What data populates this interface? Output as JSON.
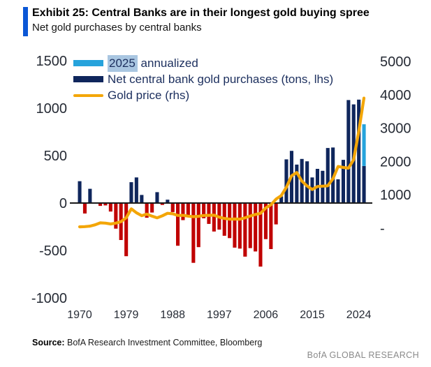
{
  "header": {
    "exhibit_title": "Exhibit 25: Central Banks are in their longest gold buying spree",
    "subtitle": "Net gold purchases by central banks"
  },
  "legend": {
    "item1_highlight": "2025",
    "item1_rest": " annualized",
    "item2": "Net central bank gold purchases (tons, lhs)",
    "item3": "Gold price (rhs)"
  },
  "footer": {
    "source_label": "Source:",
    "source_text": " BofA Research Investment Committee, Bloomberg",
    "brand": "BofA GLOBAL RESEARCH"
  },
  "colors": {
    "accent_blue": "#0b57d6",
    "navy_bar": "#0f265c",
    "red_bar": "#c00000",
    "gold_line": "#f3a608",
    "light_blue_bar": "#26a3dc",
    "legend_highlight": "#a9c6e1",
    "axis_text": "#262b35",
    "zero_line": "#1a1a1a"
  },
  "chart_data": {
    "type": "bar",
    "title": "Exhibit 25: Central Banks are in their longest gold buying spree",
    "subtitle": "Net gold purchases by central banks",
    "x": [
      1970,
      1971,
      1972,
      1973,
      1974,
      1975,
      1976,
      1977,
      1978,
      1979,
      1980,
      1981,
      1982,
      1983,
      1984,
      1985,
      1986,
      1987,
      1988,
      1989,
      1990,
      1991,
      1992,
      1993,
      1994,
      1995,
      1996,
      1997,
      1998,
      1999,
      2000,
      2001,
      2002,
      2003,
      2004,
      2005,
      2006,
      2007,
      2008,
      2009,
      2010,
      2011,
      2012,
      2013,
      2014,
      2015,
      2016,
      2017,
      2018,
      2019,
      2020,
      2021,
      2022,
      2023,
      2024,
      2025
    ],
    "series": [
      {
        "name": "Net central bank gold purchases (tons, lhs)",
        "type": "bar",
        "axis": "left",
        "values": [
          230,
          -110,
          150,
          0,
          -30,
          -25,
          -90,
          -270,
          -390,
          -560,
          220,
          270,
          85,
          -155,
          -100,
          115,
          -20,
          35,
          -95,
          -450,
          -180,
          -130,
          -630,
          -465,
          -160,
          -220,
          -300,
          -280,
          -345,
          -370,
          -470,
          -480,
          -565,
          -475,
          -510,
          -670,
          -380,
          -485,
          -225,
          70,
          460,
          550,
          405,
          465,
          440,
          270,
          360,
          340,
          580,
          585,
          250,
          455,
          1085,
          1040,
          1090,
          390
        ]
      },
      {
        "name": "2025 annualized",
        "type": "bar-segment",
        "axis": "left",
        "year": 2025,
        "from": 390,
        "to": 830
      },
      {
        "name": "Gold price (rhs)",
        "type": "line",
        "axis": "right",
        "values": [
          40,
          45,
          60,
          100,
          160,
          150,
          125,
          150,
          195,
          310,
          580,
          460,
          375,
          420,
          360,
          310,
          370,
          445,
          430,
          380,
          385,
          360,
          345,
          355,
          380,
          385,
          390,
          330,
          290,
          270,
          275,
          270,
          310,
          365,
          410,
          445,
          605,
          700,
          870,
          975,
          1225,
          1570,
          1670,
          1410,
          1265,
          1160,
          1250,
          1260,
          1270,
          1480,
          1850,
          1820,
          1800,
          2050,
          2900,
          3900
        ]
      }
    ],
    "left_axis": {
      "label": "tons",
      "ticks": [
        1500,
        1000,
        500,
        0,
        -500,
        -1000
      ],
      "range": [
        -1000,
        1500
      ]
    },
    "right_axis": {
      "label": "gold price",
      "tick_labels": [
        "5000",
        "4000",
        "3000",
        "2000",
        "1000",
        "-"
      ],
      "tick_values": [
        5000,
        4000,
        3000,
        2000,
        1000,
        0
      ],
      "range": [
        0,
        5000
      ]
    },
    "x_axis": {
      "tick_years": [
        1970,
        1979,
        1988,
        1997,
        2006,
        2015,
        2024
      ]
    },
    "grid": false,
    "legend_position": "top-left"
  }
}
